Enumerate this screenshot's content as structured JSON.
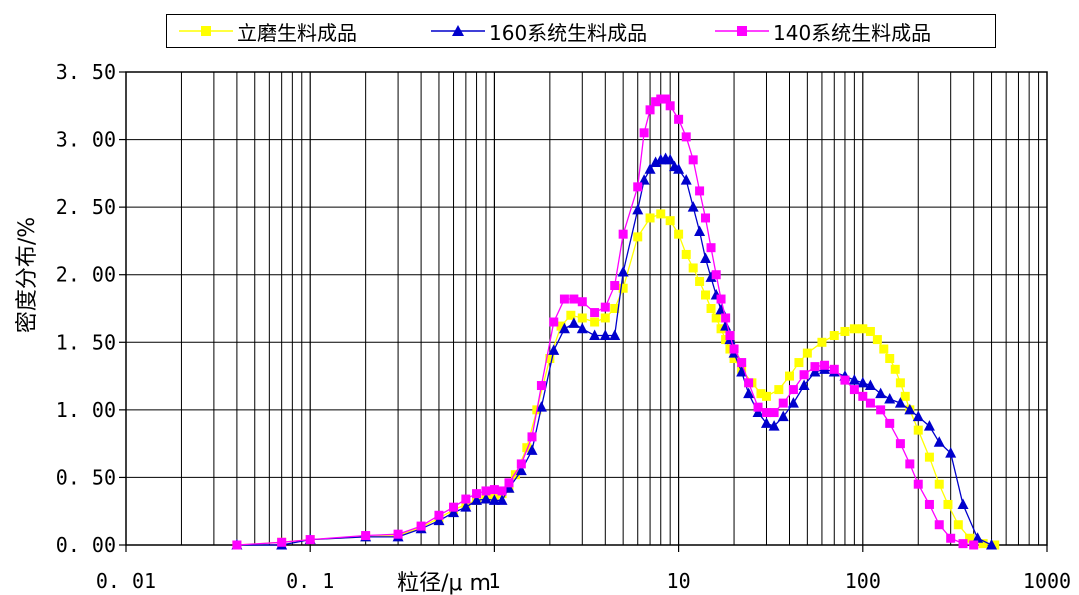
{
  "chart_data": {
    "type": "line",
    "title": "",
    "xlabel": "粒径/μ m",
    "ylabel": "密度分布/%",
    "xscale": "log",
    "xlim": [
      0.01,
      1000
    ],
    "ylim": [
      0,
      3.5
    ],
    "x_tick_labels": [
      "0.01",
      "0.1",
      "1",
      "10",
      "100",
      "1000"
    ],
    "y_tick_labels": [
      "0.00",
      "0.50",
      "1.00",
      "1.50",
      "2.00",
      "2.50",
      "3.00",
      "3.50"
    ],
    "grid": true,
    "legend_position": "top",
    "series": [
      {
        "name": "立磨生料成品",
        "color": "#ffff00",
        "marker": "square",
        "points": [
          [
            0.04,
            0
          ],
          [
            0.07,
            0.02
          ],
          [
            0.1,
            0.04
          ],
          [
            0.2,
            0.06
          ],
          [
            0.3,
            0.07
          ],
          [
            0.4,
            0.13
          ],
          [
            0.5,
            0.2
          ],
          [
            0.6,
            0.26
          ],
          [
            0.7,
            0.3
          ],
          [
            0.8,
            0.33
          ],
          [
            0.9,
            0.35
          ],
          [
            1.0,
            0.36
          ],
          [
            1.1,
            0.38
          ],
          [
            1.2,
            0.42
          ],
          [
            1.3,
            0.52
          ],
          [
            1.5,
            0.72
          ],
          [
            1.7,
            1.0
          ],
          [
            2.0,
            1.38
          ],
          [
            2.3,
            1.62
          ],
          [
            2.6,
            1.7
          ],
          [
            3.0,
            1.68
          ],
          [
            3.5,
            1.65
          ],
          [
            4.0,
            1.68
          ],
          [
            4.5,
            1.75
          ],
          [
            5.0,
            1.9
          ],
          [
            6.0,
            2.28
          ],
          [
            7.0,
            2.42
          ],
          [
            8.0,
            2.45
          ],
          [
            9.0,
            2.4
          ],
          [
            10.0,
            2.3
          ],
          [
            11.0,
            2.15
          ],
          [
            12.0,
            2.05
          ],
          [
            13.0,
            1.95
          ],
          [
            14.0,
            1.85
          ],
          [
            15.0,
            1.75
          ],
          [
            16.0,
            1.68
          ],
          [
            17.0,
            1.6
          ],
          [
            18.0,
            1.52
          ],
          [
            19.0,
            1.45
          ],
          [
            20.0,
            1.38
          ],
          [
            22.0,
            1.3
          ],
          [
            25.0,
            1.2
          ],
          [
            28.0,
            1.12
          ],
          [
            30.0,
            1.1
          ],
          [
            35.0,
            1.15
          ],
          [
            40.0,
            1.25
          ],
          [
            45.0,
            1.35
          ],
          [
            50.0,
            1.42
          ],
          [
            60.0,
            1.5
          ],
          [
            70.0,
            1.55
          ],
          [
            80.0,
            1.58
          ],
          [
            90.0,
            1.6
          ],
          [
            100.0,
            1.6
          ],
          [
            110.0,
            1.58
          ],
          [
            120.0,
            1.52
          ],
          [
            130.0,
            1.45
          ],
          [
            140.0,
            1.38
          ],
          [
            150.0,
            1.3
          ],
          [
            160.0,
            1.2
          ],
          [
            170.0,
            1.1
          ],
          [
            180.0,
            1.0
          ],
          [
            200.0,
            0.85
          ],
          [
            230.0,
            0.65
          ],
          [
            260.0,
            0.45
          ],
          [
            290.0,
            0.3
          ],
          [
            330.0,
            0.15
          ],
          [
            380.0,
            0.05
          ],
          [
            450.0,
            0.01
          ],
          [
            520.0,
            0
          ]
        ]
      },
      {
        "name": "160系统生料成品",
        "color": "#0000cc",
        "marker": "triangle",
        "points": [
          [
            0.04,
            0
          ],
          [
            0.07,
            0
          ],
          [
            0.1,
            0.04
          ],
          [
            0.2,
            0.06
          ],
          [
            0.3,
            0.06
          ],
          [
            0.4,
            0.12
          ],
          [
            0.5,
            0.18
          ],
          [
            0.6,
            0.24
          ],
          [
            0.7,
            0.28
          ],
          [
            0.8,
            0.33
          ],
          [
            0.9,
            0.34
          ],
          [
            1.0,
            0.33
          ],
          [
            1.1,
            0.33
          ],
          [
            1.2,
            0.42
          ],
          [
            1.4,
            0.55
          ],
          [
            1.6,
            0.7
          ],
          [
            1.8,
            1.02
          ],
          [
            2.1,
            1.44
          ],
          [
            2.4,
            1.6
          ],
          [
            2.7,
            1.64
          ],
          [
            3.0,
            1.6
          ],
          [
            3.5,
            1.55
          ],
          [
            4.0,
            1.55
          ],
          [
            4.5,
            1.55
          ],
          [
            5.0,
            2.02
          ],
          [
            6.0,
            2.48
          ],
          [
            6.5,
            2.7
          ],
          [
            7.0,
            2.78
          ],
          [
            7.5,
            2.83
          ],
          [
            8.0,
            2.85
          ],
          [
            8.5,
            2.86
          ],
          [
            9.0,
            2.85
          ],
          [
            9.5,
            2.8
          ],
          [
            10.0,
            2.78
          ],
          [
            11.0,
            2.7
          ],
          [
            12.0,
            2.5
          ],
          [
            13.0,
            2.32
          ],
          [
            14.0,
            2.12
          ],
          [
            15.0,
            1.98
          ],
          [
            16.0,
            1.85
          ],
          [
            17.0,
            1.74
          ],
          [
            18.0,
            1.62
          ],
          [
            19.0,
            1.52
          ],
          [
            20.0,
            1.42
          ],
          [
            22.0,
            1.28
          ],
          [
            24.0,
            1.12
          ],
          [
            27.0,
            0.98
          ],
          [
            30.0,
            0.9
          ],
          [
            33.0,
            0.88
          ],
          [
            37.0,
            0.95
          ],
          [
            42.0,
            1.05
          ],
          [
            48.0,
            1.18
          ],
          [
            55.0,
            1.28
          ],
          [
            62.0,
            1.3
          ],
          [
            70.0,
            1.28
          ],
          [
            80.0,
            1.25
          ],
          [
            90.0,
            1.22
          ],
          [
            100.0,
            1.2
          ],
          [
            110.0,
            1.18
          ],
          [
            125.0,
            1.12
          ],
          [
            140.0,
            1.08
          ],
          [
            160.0,
            1.05
          ],
          [
            180.0,
            1.0
          ],
          [
            200.0,
            0.95
          ],
          [
            230.0,
            0.88
          ],
          [
            260.0,
            0.76
          ],
          [
            300.0,
            0.68
          ],
          [
            350.0,
            0.3
          ],
          [
            420.0,
            0.05
          ],
          [
            500.0,
            0
          ]
        ]
      },
      {
        "name": "140系统生料成品",
        "color": "#ff00ff",
        "marker": "square",
        "points": [
          [
            0.04,
            0
          ],
          [
            0.07,
            0.02
          ],
          [
            0.1,
            0.04
          ],
          [
            0.2,
            0.07
          ],
          [
            0.3,
            0.08
          ],
          [
            0.4,
            0.14
          ],
          [
            0.5,
            0.22
          ],
          [
            0.6,
            0.28
          ],
          [
            0.7,
            0.34
          ],
          [
            0.8,
            0.38
          ],
          [
            0.9,
            0.4
          ],
          [
            1.0,
            0.41
          ],
          [
            1.1,
            0.4
          ],
          [
            1.2,
            0.46
          ],
          [
            1.4,
            0.6
          ],
          [
            1.6,
            0.8
          ],
          [
            1.8,
            1.18
          ],
          [
            2.1,
            1.65
          ],
          [
            2.4,
            1.82
          ],
          [
            2.7,
            1.82
          ],
          [
            3.0,
            1.8
          ],
          [
            3.5,
            1.72
          ],
          [
            4.0,
            1.76
          ],
          [
            4.5,
            1.92
          ],
          [
            5.0,
            2.3
          ],
          [
            6.0,
            2.65
          ],
          [
            6.5,
            3.05
          ],
          [
            7.0,
            3.22
          ],
          [
            7.5,
            3.28
          ],
          [
            8.0,
            3.3
          ],
          [
            8.5,
            3.3
          ],
          [
            9.0,
            3.25
          ],
          [
            10.0,
            3.15
          ],
          [
            11.0,
            3.02
          ],
          [
            12.0,
            2.85
          ],
          [
            13.0,
            2.62
          ],
          [
            14.0,
            2.42
          ],
          [
            15.0,
            2.2
          ],
          [
            16.0,
            2.0
          ],
          [
            17.0,
            1.82
          ],
          [
            18.0,
            1.68
          ],
          [
            19.0,
            1.55
          ],
          [
            20.0,
            1.45
          ],
          [
            22.0,
            1.35
          ],
          [
            24.0,
            1.2
          ],
          [
            27.0,
            1.02
          ],
          [
            30.0,
            0.98
          ],
          [
            33.0,
            0.98
          ],
          [
            37.0,
            1.05
          ],
          [
            42.0,
            1.15
          ],
          [
            48.0,
            1.26
          ],
          [
            55.0,
            1.32
          ],
          [
            62.0,
            1.33
          ],
          [
            70.0,
            1.3
          ],
          [
            80.0,
            1.22
          ],
          [
            90.0,
            1.15
          ],
          [
            100.0,
            1.1
          ],
          [
            110.0,
            1.05
          ],
          [
            125.0,
            1.0
          ],
          [
            140.0,
            0.9
          ],
          [
            160.0,
            0.75
          ],
          [
            180.0,
            0.6
          ],
          [
            200.0,
            0.45
          ],
          [
            230.0,
            0.3
          ],
          [
            260.0,
            0.15
          ],
          [
            300.0,
            0.05
          ],
          [
            350.0,
            0.01
          ],
          [
            400.0,
            0
          ]
        ]
      }
    ]
  }
}
